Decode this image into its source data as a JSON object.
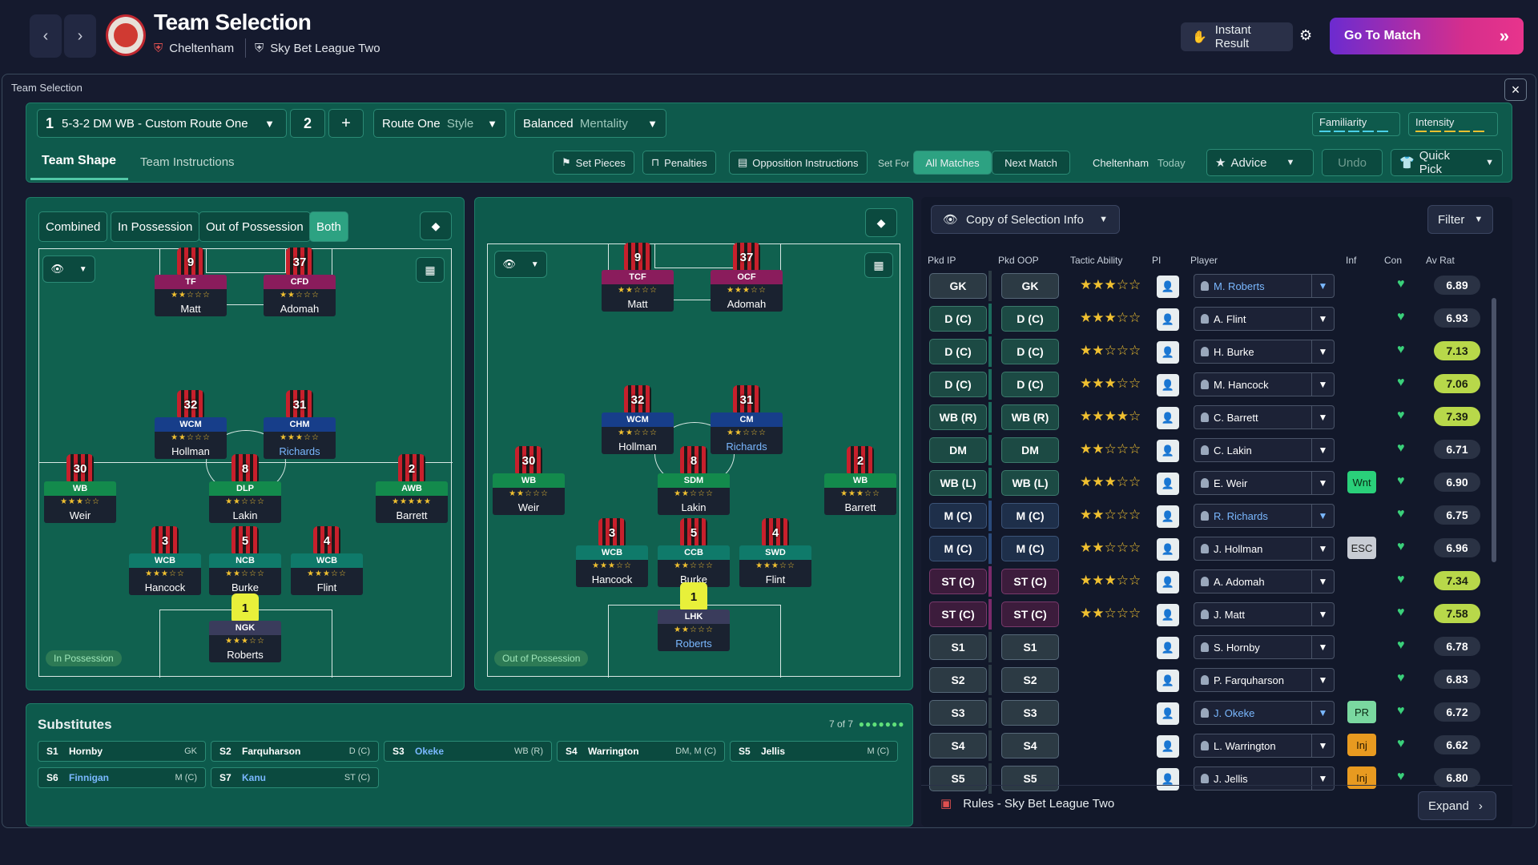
{
  "header": {
    "title": "Team Selection",
    "club": "Cheltenham",
    "league": "Sky Bet League Two",
    "instant_result": "Instant Result",
    "go_to_match": "Go To Match"
  },
  "panel": {
    "title": "Team Selection"
  },
  "tactic": {
    "slot": "1",
    "name": "5-3-2 DM WB - Custom Route One",
    "slot2": "2",
    "plus": "+",
    "style_value": "Route One",
    "style_label": "Style",
    "mentality_value": "Balanced",
    "mentality_label": "Mentality",
    "familiarity": "Familiarity",
    "intensity": "Intensity"
  },
  "tabs": {
    "team_shape": "Team Shape",
    "team_instructions": "Team Instructions"
  },
  "toolbar": {
    "set_pieces": "Set Pieces",
    "penalties": "Penalties",
    "opposition": "Opposition Instructions",
    "set_for": "Set For",
    "all_matches": "All Matches",
    "next_match": "Next Match",
    "club": "Cheltenham",
    "today": "Today",
    "advice": "Advice",
    "undo": "Undo",
    "quick_pick": "Quick Pick"
  },
  "pitch_modes": [
    "Combined",
    "In Possession",
    "Out of Possession",
    "Both"
  ],
  "in_possession_label": "In Possession",
  "out_possession_label": "Out of Possession",
  "ip_players": [
    {
      "num": "9",
      "role": "TF",
      "stars": "★★☆☆☆",
      "name": "Matt",
      "cls": "r-st"
    },
    {
      "num": "37",
      "role": "CFD",
      "stars": "★★☆☆☆",
      "name": "Adomah",
      "cls": "r-st"
    },
    {
      "num": "32",
      "role": "WCM",
      "stars": "★★☆☆☆",
      "name": "Hollman",
      "cls": "r-mid"
    },
    {
      "num": "31",
      "role": "CHM",
      "stars": "★★★☆☆",
      "name": "Richards",
      "cls": "r-mid",
      "hl": true
    },
    {
      "num": "30",
      "role": "WB",
      "stars": "★★★☆☆",
      "name": "Weir",
      "cls": "r-wb"
    },
    {
      "num": "8",
      "role": "DLP",
      "stars": "★★☆☆☆",
      "name": "Lakin",
      "cls": "r-dm"
    },
    {
      "num": "2",
      "role": "AWB",
      "stars": "★★★★★",
      "name": "Barrett",
      "cls": "r-wb"
    },
    {
      "num": "3",
      "role": "WCB",
      "stars": "★★★☆☆",
      "name": "Hancock",
      "cls": "r-def"
    },
    {
      "num": "5",
      "role": "NCB",
      "stars": "★★☆☆☆",
      "name": "Burke",
      "cls": "r-def"
    },
    {
      "num": "4",
      "role": "WCB",
      "stars": "★★★☆☆",
      "name": "Flint",
      "cls": "r-def"
    },
    {
      "num": "1",
      "role": "NGK",
      "stars": "★★★☆☆",
      "name": "Roberts",
      "cls": "r-gk",
      "gk": true
    }
  ],
  "oop_players": [
    {
      "num": "9",
      "role": "TCF",
      "stars": "★★☆☆☆",
      "name": "Matt",
      "cls": "r-st"
    },
    {
      "num": "37",
      "role": "OCF",
      "stars": "★★★☆☆",
      "name": "Adomah",
      "cls": "r-st"
    },
    {
      "num": "32",
      "role": "WCM",
      "stars": "★★☆☆☆",
      "name": "Hollman",
      "cls": "r-mid"
    },
    {
      "num": "31",
      "role": "CM",
      "stars": "★★☆☆☆",
      "name": "Richards",
      "cls": "r-mid",
      "hl": true
    },
    {
      "num": "30",
      "role": "WB",
      "stars": "★★☆☆☆",
      "name": "Weir",
      "cls": "r-wb"
    },
    {
      "num": "8",
      "role": "SDM",
      "stars": "★★☆☆☆",
      "name": "Lakin",
      "cls": "r-dm"
    },
    {
      "num": "2",
      "role": "WB",
      "stars": "★★★☆☆",
      "name": "Barrett",
      "cls": "r-wb"
    },
    {
      "num": "3",
      "role": "WCB",
      "stars": "★★★☆☆",
      "name": "Hancock",
      "cls": "r-def"
    },
    {
      "num": "5",
      "role": "CCB",
      "stars": "★★☆☆☆",
      "name": "Burke",
      "cls": "r-def"
    },
    {
      "num": "4",
      "role": "SWD",
      "stars": "★★★☆☆",
      "name": "Flint",
      "cls": "r-def"
    },
    {
      "num": "1",
      "role": "LHK",
      "stars": "★★☆☆☆",
      "name": "Roberts",
      "cls": "r-gk",
      "gk": true,
      "hl": true
    }
  ],
  "selection": {
    "copy_label": "Copy of Selection Info",
    "filter": "Filter",
    "headers": {
      "pkd_ip": "Pkd IP",
      "pkd_oop": "Pkd OOP",
      "tactic_ability": "Tactic Ability",
      "pi": "PI",
      "player": "Player",
      "inf": "Inf",
      "con": "Con",
      "av_rat": "Av Rat"
    },
    "rows": [
      {
        "ip": "GK",
        "oop": "GK",
        "stars": "★★★☆☆",
        "player": "M. Roberts",
        "hl": true,
        "inf": "",
        "rating": "6.89",
        "hi": false,
        "g": "gk"
      },
      {
        "ip": "D (C)",
        "oop": "D (C)",
        "stars": "★★★☆☆",
        "player": "A. Flint",
        "inf": "",
        "rating": "6.93",
        "hi": false,
        "g": "def"
      },
      {
        "ip": "D (C)",
        "oop": "D (C)",
        "stars": "★★☆☆☆",
        "player": "H. Burke",
        "inf": "",
        "rating": "7.13",
        "hi": true,
        "g": "def"
      },
      {
        "ip": "D (C)",
        "oop": "D (C)",
        "stars": "★★★☆☆",
        "player": "M. Hancock",
        "inf": "",
        "rating": "7.06",
        "hi": true,
        "g": "def"
      },
      {
        "ip": "WB (R)",
        "oop": "WB (R)",
        "stars": "★★★★☆",
        "player": "C. Barrett",
        "inf": "",
        "rating": "7.39",
        "hi": true,
        "g": "def"
      },
      {
        "ip": "DM",
        "oop": "DM",
        "stars": "★★☆☆☆",
        "player": "C. Lakin",
        "inf": "",
        "rating": "6.71",
        "hi": false,
        "g": "def"
      },
      {
        "ip": "WB (L)",
        "oop": "WB (L)",
        "stars": "★★★☆☆",
        "player": "E. Weir",
        "inf": "Wnt",
        "infcls": "wnt",
        "rating": "6.90",
        "hi": false,
        "g": "def"
      },
      {
        "ip": "M (C)",
        "oop": "M (C)",
        "stars": "★★☆☆☆",
        "player": "R. Richards",
        "hl": true,
        "inf": "",
        "rating": "6.75",
        "hi": false,
        "g": "mid"
      },
      {
        "ip": "M (C)",
        "oop": "M (C)",
        "stars": "★★☆☆☆",
        "player": "J. Hollman",
        "inf": "ESC",
        "infcls": "esc",
        "rating": "6.96",
        "hi": false,
        "g": "mid"
      },
      {
        "ip": "ST (C)",
        "oop": "ST (C)",
        "stars": "★★★☆☆",
        "player": "A. Adomah",
        "inf": "",
        "rating": "7.34",
        "hi": true,
        "g": "st"
      },
      {
        "ip": "ST (C)",
        "oop": "ST (C)",
        "stars": "★★☆☆☆",
        "player": "J. Matt",
        "inf": "",
        "rating": "7.58",
        "hi": true,
        "g": "st"
      },
      {
        "ip": "S1",
        "oop": "S1",
        "stars": "",
        "player": "S. Hornby",
        "inf": "",
        "rating": "6.78",
        "hi": false,
        "g": "gk"
      },
      {
        "ip": "S2",
        "oop": "S2",
        "stars": "",
        "player": "P. Farquharson",
        "inf": "",
        "rating": "6.83",
        "hi": false,
        "g": "gk"
      },
      {
        "ip": "S3",
        "oop": "S3",
        "stars": "",
        "player": "J. Okeke",
        "hl": true,
        "inf": "PR",
        "infcls": "pr",
        "rating": "6.72",
        "hi": false,
        "g": "gk"
      },
      {
        "ip": "S4",
        "oop": "S4",
        "stars": "",
        "player": "L. Warrington",
        "inf": "Inj",
        "infcls": "inj",
        "rating": "6.62",
        "hi": false,
        "g": "gk"
      },
      {
        "ip": "S5",
        "oop": "S5",
        "stars": "",
        "player": "J. Jellis",
        "inf": "Inj",
        "infcls": "inj",
        "rating": "6.80",
        "hi": false,
        "g": "gk"
      }
    ],
    "rules": "Rules - Sky Bet League Two",
    "expand": "Expand"
  },
  "subs": {
    "title": "Substitutes",
    "count": "7 of 7",
    "items": [
      {
        "slot": "S1",
        "name": "Hornby",
        "pos": "GK"
      },
      {
        "slot": "S2",
        "name": "Farquharson",
        "pos": "D (C)"
      },
      {
        "slot": "S3",
        "name": "Okeke",
        "pos": "WB (R)",
        "hl": true
      },
      {
        "slot": "S4",
        "name": "Warrington",
        "pos": "DM, M (C)"
      },
      {
        "slot": "S5",
        "name": "Jellis",
        "pos": "M (C)"
      },
      {
        "slot": "S6",
        "name": "Finnigan",
        "pos": "M (C)",
        "hl": true
      },
      {
        "slot": "S7",
        "name": "Kanu",
        "pos": "ST (C)",
        "hl": true
      }
    ]
  }
}
